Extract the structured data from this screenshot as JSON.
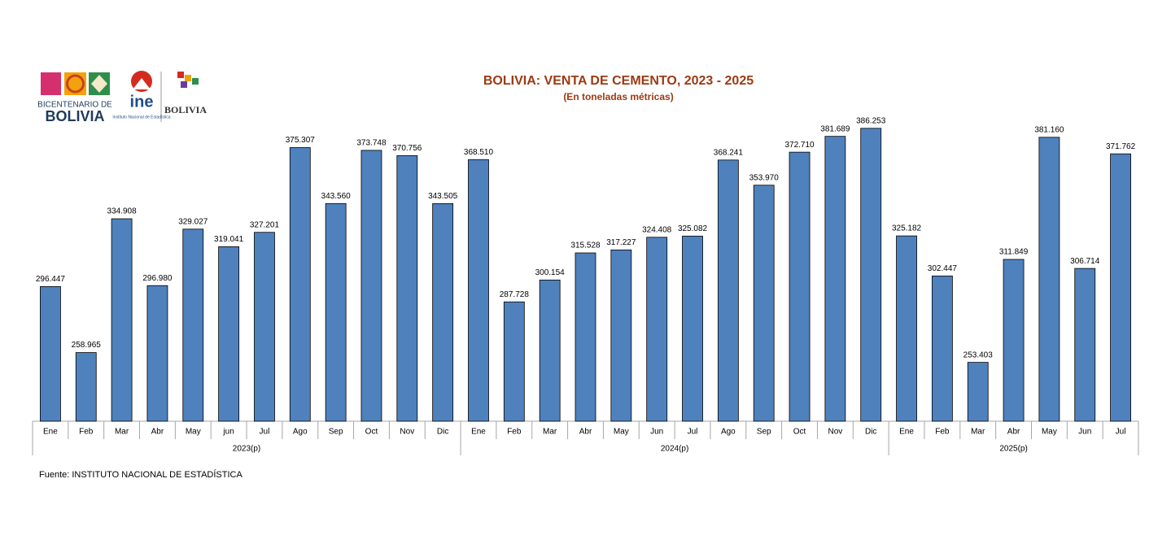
{
  "logos": {
    "bicentenario_line1": "BICENTENARIO DE",
    "bicentenario_line2": "BOLIVIA",
    "ine": "ine",
    "ine_name": "Instituto Nacional de Estadística",
    "ministry": "BOLIVIA"
  },
  "chart_data": {
    "type": "bar",
    "title": "BOLIVIA: VENTA DE CEMENTO, 2023 - 2025",
    "subtitle": "(En toneladas métricas)",
    "source": "Fuente: INSTITUTO NACIONAL DE ESTADÍSTICA",
    "color": "#4f81bd",
    "ylim": [
      220000,
      400000
    ],
    "groups": [
      {
        "name": "2023(p)",
        "categories": [
          "Ene",
          "Feb",
          "Mar",
          "Abr",
          "May",
          "jun",
          "Jul",
          "Ago",
          "Sep",
          "Oct",
          "Nov",
          "Dic"
        ],
        "values": [
          296447,
          258965,
          334908,
          296980,
          329027,
          319041,
          327201,
          375307,
          343560,
          373748,
          370756,
          343505
        ],
        "value_labels": [
          "296.447",
          "258.965",
          "334.908",
          "296.980",
          "329.027",
          "319.041",
          "327.201",
          "375.307",
          "343.560",
          "373.748",
          "370.756",
          "343.505"
        ]
      },
      {
        "name": "2024(p)",
        "categories": [
          "Ene",
          "Feb",
          "Mar",
          "Abr",
          "May",
          "Jun",
          "Jul",
          "Ago",
          "Sep",
          "Oct",
          "Nov",
          "Dic"
        ],
        "values": [
          368510,
          287728,
          300154,
          315528,
          317227,
          324408,
          325082,
          368241,
          353970,
          372710,
          381689,
          386253
        ],
        "value_labels": [
          "368.510",
          "287.728",
          "300.154",
          "315.528",
          "317.227",
          "324.408",
          "325.082",
          "368.241",
          "353.970",
          "372.710",
          "381.689",
          "386.253"
        ]
      },
      {
        "name": "2025(p)",
        "categories": [
          "Ene",
          "Feb",
          "Mar",
          "Abr",
          "May",
          "Jun",
          "Jul"
        ],
        "values": [
          325182,
          302447,
          253403,
          311849,
          381160,
          306714,
          371762
        ],
        "value_labels": [
          "325.182",
          "302.447",
          "253.403",
          "311.849",
          "381.160",
          "306.714",
          "371.762"
        ]
      }
    ]
  }
}
